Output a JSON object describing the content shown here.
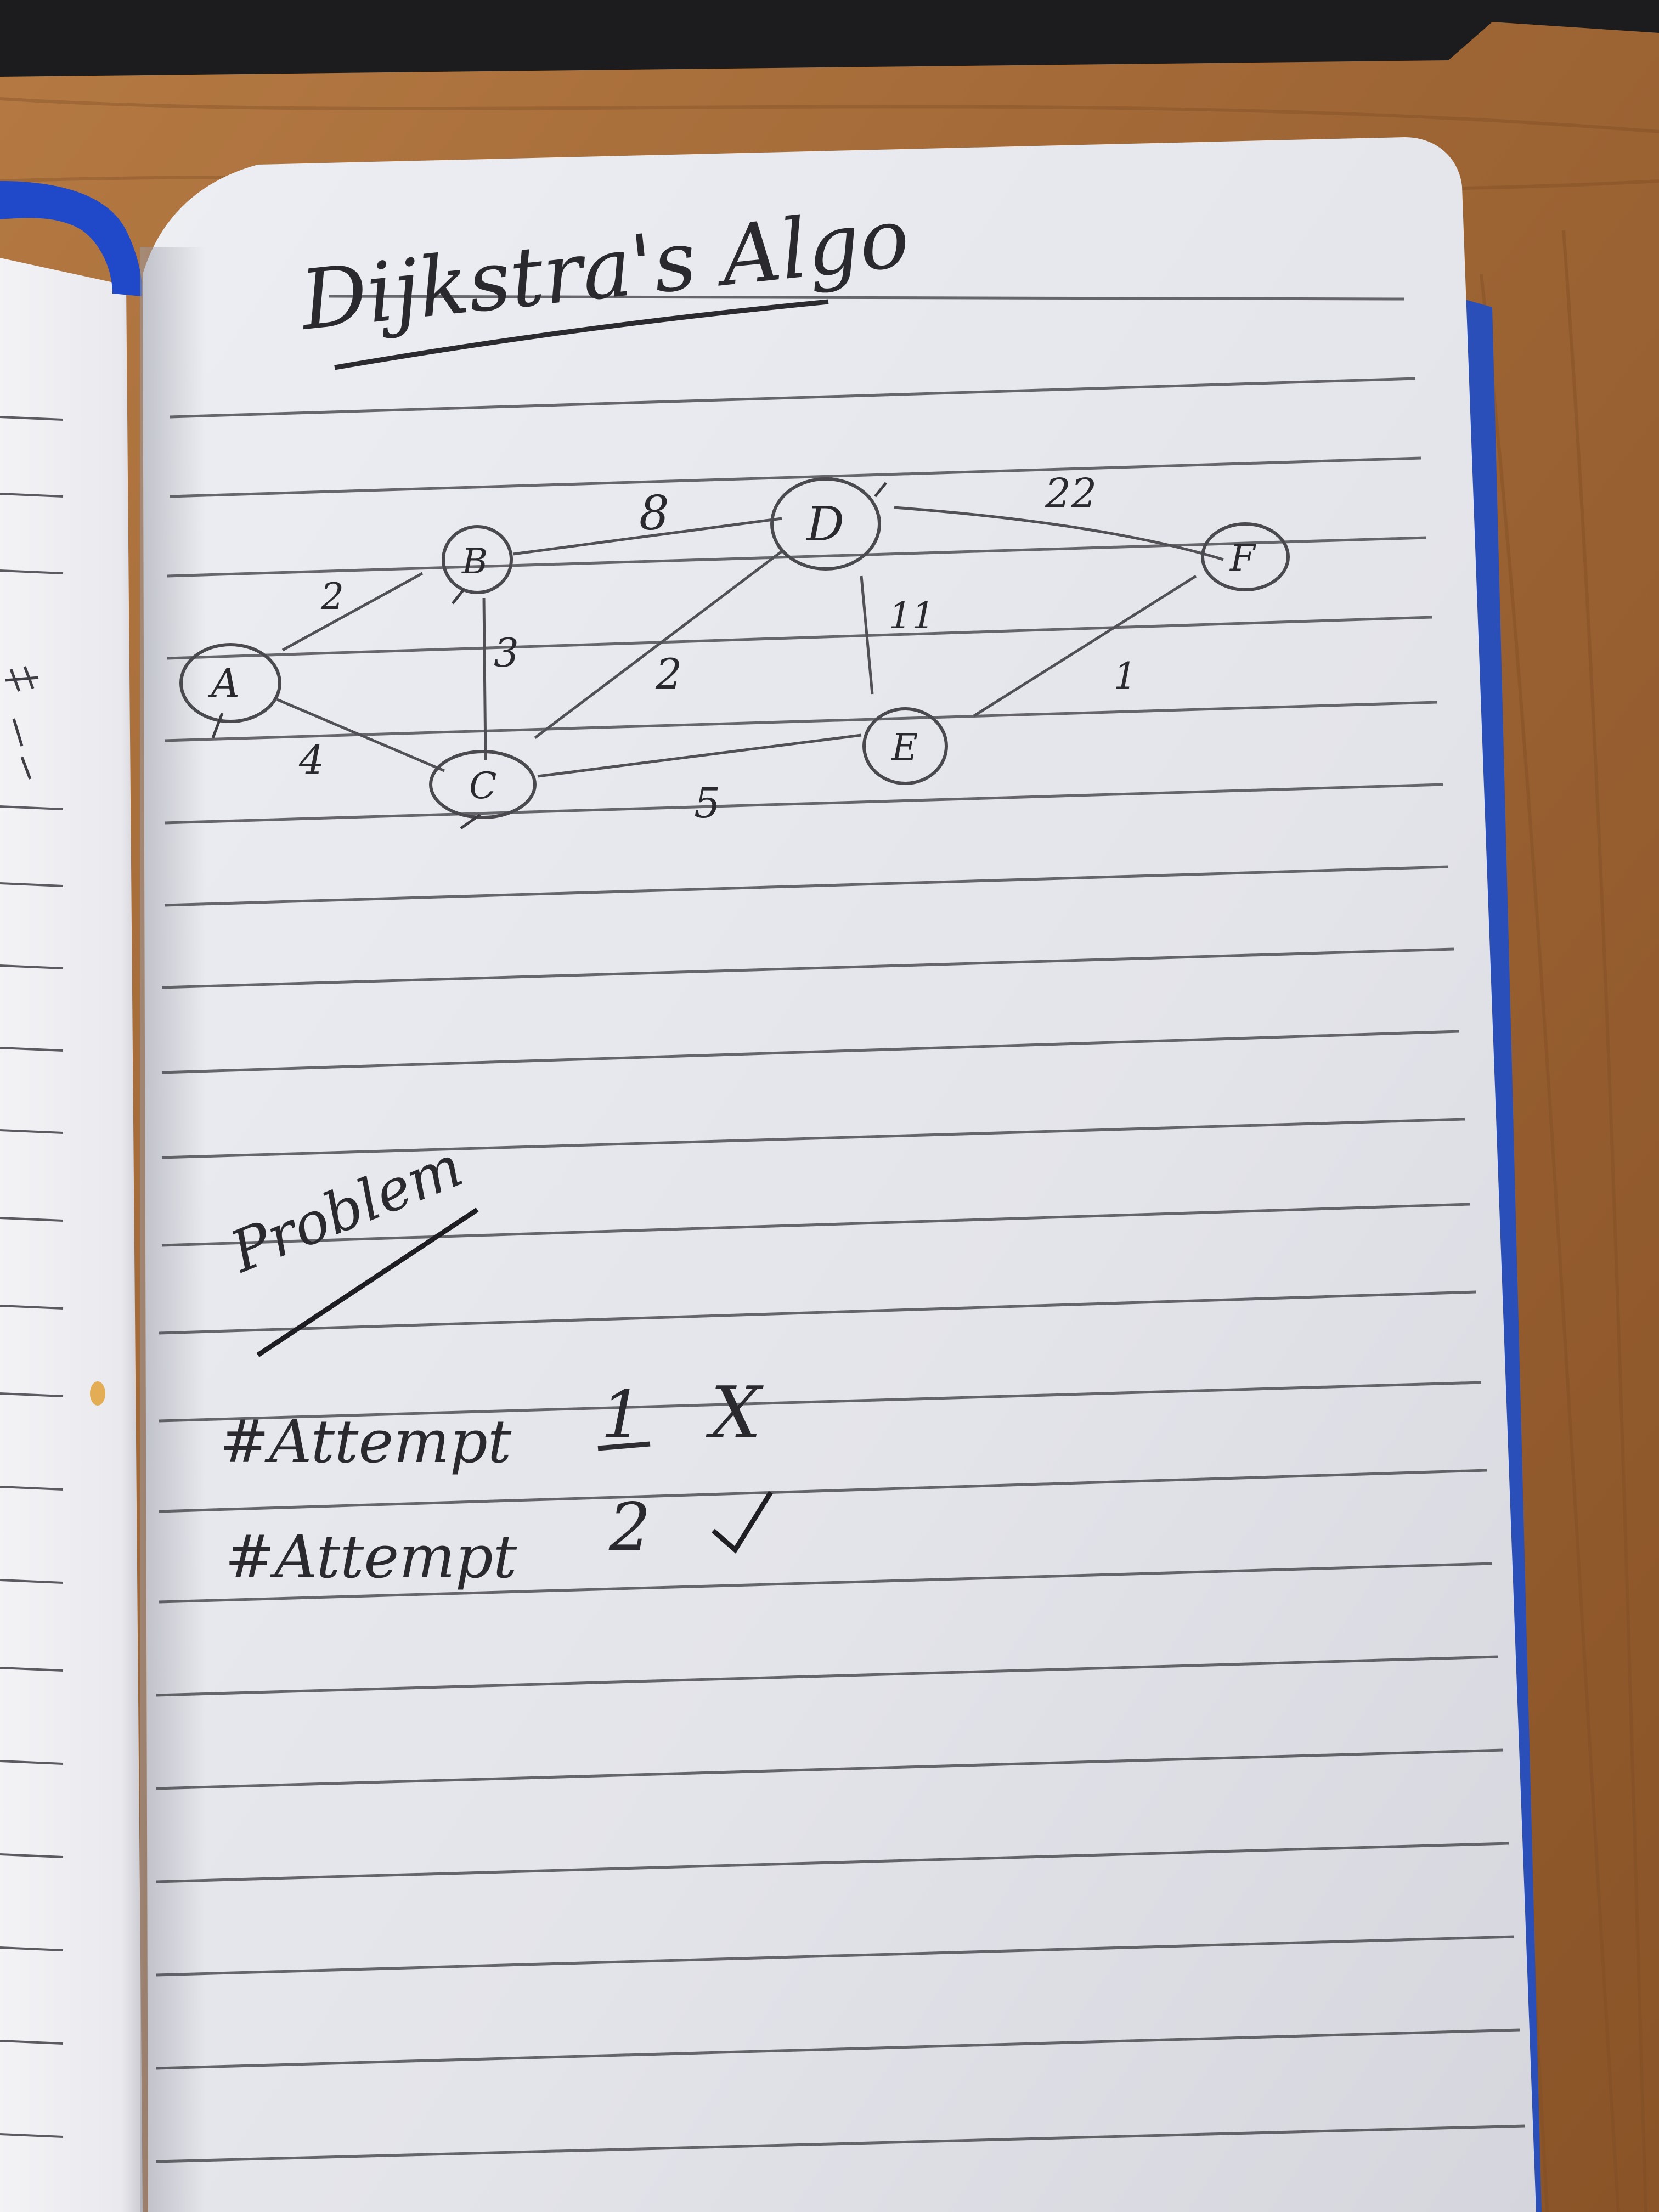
{
  "scene": {
    "description_free": true,
    "colors": {
      "desk_wood": "#a86d3a",
      "desk_wood_dark": "#7e4e25",
      "page_paper": "#e8e9ef",
      "left_page_paper": "#f1f1f4",
      "ruled_line": "#3a3a40",
      "notebook_cover": "#2b4fb8",
      "ribbon": "#1f49c9",
      "pencil_ink": "#4a4a4e",
      "dark_object": "#1c1c1e"
    }
  },
  "note": {
    "title": "Dijkstra's Algo",
    "graph": {
      "nodes": [
        {
          "id": "A",
          "label": "A"
        },
        {
          "id": "B",
          "label": "B"
        },
        {
          "id": "C",
          "label": "C"
        },
        {
          "id": "D",
          "label": "D"
        },
        {
          "id": "E",
          "label": "E"
        },
        {
          "id": "F",
          "label": "F"
        }
      ],
      "edges": [
        {
          "from": "A",
          "to": "B",
          "weight": "2"
        },
        {
          "from": "A",
          "to": "C",
          "weight": "4"
        },
        {
          "from": "B",
          "to": "C",
          "weight": "3"
        },
        {
          "from": "B",
          "to": "D",
          "weight": "8"
        },
        {
          "from": "C",
          "to": "D",
          "weight": "2"
        },
        {
          "from": "C",
          "to": "E",
          "weight": "5"
        },
        {
          "from": "D",
          "to": "E",
          "weight": "11"
        },
        {
          "from": "D",
          "to": "F",
          "weight": "22"
        },
        {
          "from": "E",
          "to": "F",
          "weight": "1"
        }
      ]
    },
    "problem_heading": "Problem",
    "attempts": [
      {
        "label": "#Attempt",
        "number": "1",
        "mark": "X"
      },
      {
        "label": "#Attempt",
        "number": "2",
        "mark": "✓"
      }
    ]
  }
}
